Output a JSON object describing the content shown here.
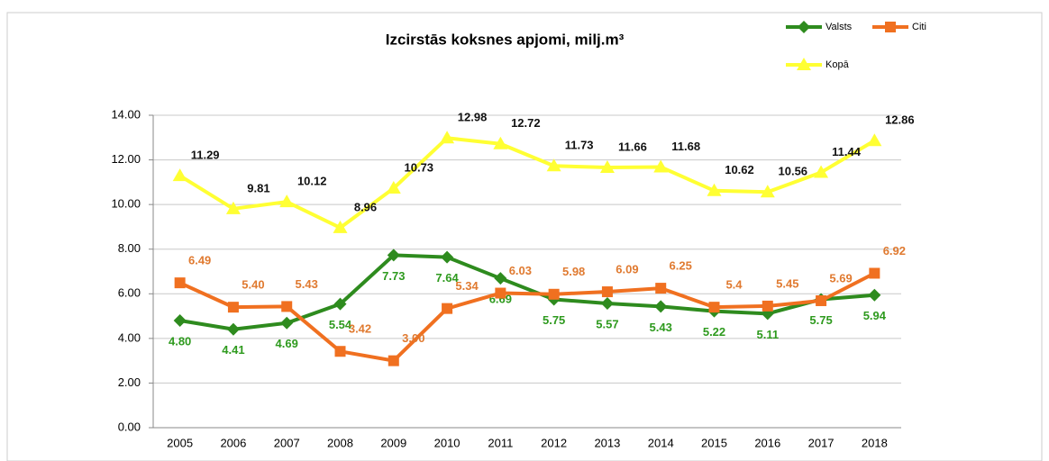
{
  "chart_data": {
    "type": "line",
    "title": "Izcirstās koksnes apjomi, milj.m³",
    "categories": [
      "2005",
      "2006",
      "2007",
      "2008",
      "2009",
      "2010",
      "2011",
      "2012",
      "2013",
      "2014",
      "2015",
      "2016",
      "2017",
      "2018"
    ],
    "series": [
      {
        "name": "Valsts",
        "color": "#2e8b1e",
        "marker": "diamond",
        "values": [
          4.8,
          4.41,
          4.69,
          5.54,
          7.73,
          7.64,
          6.69,
          5.75,
          5.57,
          5.43,
          5.22,
          5.11,
          5.75,
          5.94
        ],
        "value_labels": [
          "4.80",
          "4.41",
          "4.69",
          "5.54",
          "7.73",
          "7.64",
          "6.69",
          "5.75",
          "5.57",
          "5.43",
          "5.22",
          "5.11",
          "5.75",
          "5.94"
        ]
      },
      {
        "name": "Citi",
        "color": "#f07020",
        "marker": "square",
        "values": [
          6.49,
          5.4,
          5.43,
          3.42,
          3.0,
          5.34,
          6.03,
          5.98,
          6.09,
          6.25,
          5.4,
          5.45,
          5.69,
          6.92
        ],
        "value_labels": [
          "6.49",
          "5.40",
          "5.43",
          "3.42",
          "3.00",
          "5.34",
          "6.03",
          "5.98",
          "6.09",
          "6.25",
          "5.4",
          "5.45",
          "5.69",
          "6.92"
        ]
      },
      {
        "name": "Kopā",
        "color": "#ffff33",
        "marker": "triangle",
        "values": [
          11.29,
          9.81,
          10.12,
          8.96,
          10.73,
          12.98,
          12.72,
          11.73,
          11.66,
          11.68,
          10.62,
          10.56,
          11.44,
          12.86
        ],
        "value_labels": [
          "11.29",
          "9.81",
          "10.12",
          "8.96",
          "10.73",
          "12.98",
          "12.72",
          "11.73",
          "11.66",
          "11.68",
          "10.62",
          "10.56",
          "11.44",
          "12.86"
        ]
      }
    ],
    "ylim": [
      0,
      14
    ],
    "yticks": [
      {
        "value": 0,
        "label": "0.00"
      },
      {
        "value": 2,
        "label": "2.00"
      },
      {
        "value": 4,
        "label": "4.00"
      },
      {
        "value": 6,
        "label": "6.00"
      },
      {
        "value": 8,
        "label": "8.00"
      },
      {
        "value": 10,
        "label": "10.00"
      },
      {
        "value": 12,
        "label": "12.00"
      },
      {
        "value": 14,
        "label": "14.00"
      }
    ],
    "grid": true
  }
}
